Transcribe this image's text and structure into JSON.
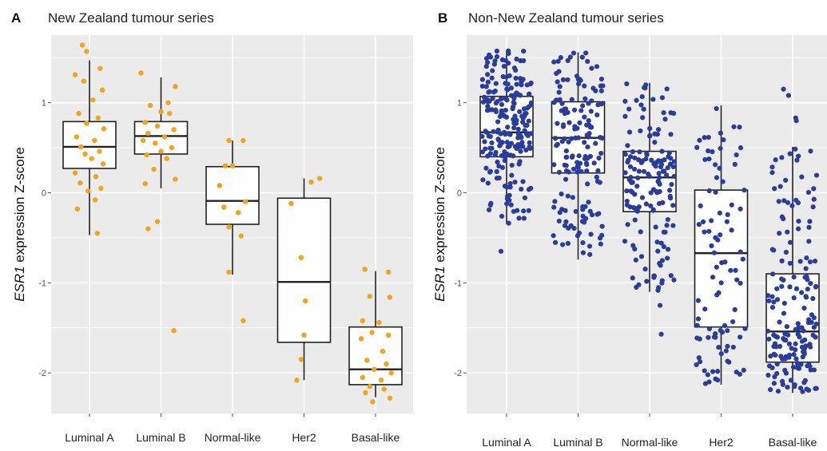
{
  "chart_data": [
    {
      "type": "box",
      "panel_label": "A",
      "title": "New Zealand tumour series",
      "ylabel_italic": "ESR1",
      "ylabel_rest": " expression Z-score",
      "categories": [
        "Luminal A",
        "Luminal B",
        "Normal-like",
        "Her2",
        "Basal-like"
      ],
      "yticks": [
        1,
        0,
        -1,
        -2
      ],
      "ylim": [
        -2.45,
        1.75
      ],
      "grid": true,
      "point_color": "#F5A31A",
      "boxes": [
        {
          "q1": 0.27,
          "median": 0.51,
          "q3": 0.79,
          "whisker_low": -0.47,
          "whisker_high": 1.47
        },
        {
          "q1": 0.43,
          "median": 0.63,
          "q3": 0.79,
          "whisker_low": 0.05,
          "whisker_high": 1.28
        },
        {
          "q1": -0.35,
          "median": -0.09,
          "q3": 0.29,
          "whisker_low": -0.91,
          "whisker_high": 0.58
        },
        {
          "q1": -1.66,
          "median": -0.99,
          "q3": -0.06,
          "whisker_low": -2.08,
          "whisker_high": 0.16
        },
        {
          "q1": -2.13,
          "median": -1.96,
          "q3": -1.49,
          "whisker_low": -2.27,
          "whisker_high": -0.87
        }
      ],
      "points": [
        [
          -0.1,
          1.64
        ],
        [
          -0.04,
          1.57
        ],
        [
          0.15,
          1.38
        ],
        [
          -0.2,
          1.31
        ],
        [
          -0.08,
          1.24
        ],
        [
          0.18,
          1.14
        ],
        [
          0.05,
          1.03
        ],
        [
          -0.15,
          0.88
        ],
        [
          0.12,
          0.83
        ],
        [
          -0.04,
          0.77
        ],
        [
          0.2,
          0.71
        ],
        [
          -0.18,
          0.62
        ],
        [
          0.07,
          0.58
        ],
        [
          -0.12,
          0.51
        ],
        [
          0.14,
          0.46
        ],
        [
          -0.06,
          0.43
        ],
        [
          0.03,
          0.38
        ],
        [
          0.19,
          0.32
        ],
        [
          -0.2,
          0.22
        ],
        [
          0.09,
          0.18
        ],
        [
          -0.13,
          0.11
        ],
        [
          0.16,
          0.05
        ],
        [
          -0.02,
          0.02
        ],
        [
          0.08,
          -0.08
        ],
        [
          -0.17,
          -0.18
        ],
        [
          0.11,
          -0.45
        ],
        [
          0.72,
          1.33
        ],
        [
          1.2,
          1.18
        ],
        [
          1.1,
          1.0
        ],
        [
          0.85,
          0.97
        ],
        [
          1.0,
          0.9
        ],
        [
          1.12,
          0.88
        ],
        [
          0.78,
          0.78
        ],
        [
          0.95,
          0.74
        ],
        [
          1.18,
          0.7
        ],
        [
          0.82,
          0.66
        ],
        [
          1.05,
          0.62
        ],
        [
          0.75,
          0.58
        ],
        [
          0.92,
          0.55
        ],
        [
          1.15,
          0.5
        ],
        [
          1.0,
          0.46
        ],
        [
          0.8,
          0.42
        ],
        [
          1.08,
          0.38
        ],
        [
          0.9,
          0.26
        ],
        [
          1.2,
          0.15
        ],
        [
          0.78,
          0.1
        ],
        [
          0.95,
          -0.32
        ],
        [
          0.82,
          -0.4
        ],
        [
          1.18,
          -1.53
        ],
        [
          1.95,
          0.58
        ],
        [
          2.15,
          0.58
        ],
        [
          1.9,
          0.3
        ],
        [
          2.0,
          0.3
        ],
        [
          1.82,
          0.08
        ],
        [
          2.18,
          -0.1
        ],
        [
          1.88,
          -0.16
        ],
        [
          2.08,
          -0.22
        ],
        [
          1.95,
          -0.38
        ],
        [
          2.12,
          -0.48
        ],
        [
          1.95,
          -0.88
        ],
        [
          2.15,
          -1.42
        ],
        [
          3.22,
          0.16
        ],
        [
          3.1,
          0.12
        ],
        [
          2.82,
          -0.12
        ],
        [
          2.96,
          -0.72
        ],
        [
          3.02,
          -1.2
        ],
        [
          3.0,
          -1.58
        ],
        [
          2.96,
          -1.85
        ],
        [
          2.9,
          -2.08
        ],
        [
          3.85,
          -0.85
        ],
        [
          4.18,
          -0.88
        ],
        [
          3.92,
          -1.15
        ],
        [
          4.2,
          -1.16
        ],
        [
          3.82,
          -1.42
        ],
        [
          4.05,
          -1.44
        ],
        [
          3.95,
          -1.55
        ],
        [
          4.18,
          -1.58
        ],
        [
          3.8,
          -1.62
        ],
        [
          4.1,
          -1.76
        ],
        [
          3.88,
          -1.86
        ],
        [
          4.15,
          -1.9
        ],
        [
          3.98,
          -1.96
        ],
        [
          4.22,
          -2.0
        ],
        [
          3.82,
          -2.05
        ],
        [
          4.08,
          -2.08
        ],
        [
          3.92,
          -2.15
        ],
        [
          4.12,
          -2.18
        ],
        [
          3.86,
          -2.22
        ],
        [
          4.2,
          -2.28
        ],
        [
          3.96,
          -2.32
        ]
      ]
    },
    {
      "type": "box",
      "panel_label": "B",
      "title": "Non-New Zealand tumour series",
      "ylabel_italic": "ESR1",
      "ylabel_rest": " expression Z-score",
      "categories": [
        "Luminal A",
        "Luminal B",
        "Normal-like",
        "Her2",
        "Basal-like"
      ],
      "yticks": [
        1,
        0,
        -1,
        -2
      ],
      "ylim": [
        -2.45,
        1.75
      ],
      "grid": true,
      "point_color": "#2B3D9C",
      "boxes": [
        {
          "q1": 0.4,
          "median": 0.67,
          "q3": 1.07,
          "whisker_low": -0.35,
          "whisker_high": 1.58
        },
        {
          "q1": 0.22,
          "median": 0.61,
          "q3": 1.01,
          "whisker_low": -0.74,
          "whisker_high": 1.56
        },
        {
          "q1": -0.21,
          "median": 0.17,
          "q3": 0.46,
          "whisker_low": -1.1,
          "whisker_high": 1.22
        },
        {
          "q1": -1.49,
          "median": -0.67,
          "q3": 0.03,
          "whisker_low": -2.13,
          "whisker_high": 0.97
        },
        {
          "q1": -1.88,
          "median": -1.54,
          "q3": -0.9,
          "whisker_low": -2.22,
          "whisker_high": 0.51
        }
      ],
      "outliers": [
        [
          0,
          -0.65
        ],
        [
          2,
          -1.25
        ],
        [
          2,
          -1.57
        ],
        [
          4,
          1.15
        ],
        [
          4,
          1.08
        ],
        [
          4,
          0.83
        ],
        [
          4,
          0.8
        ]
      ],
      "point_density": [
        220,
        160,
        150,
        95,
        170
      ]
    }
  ]
}
